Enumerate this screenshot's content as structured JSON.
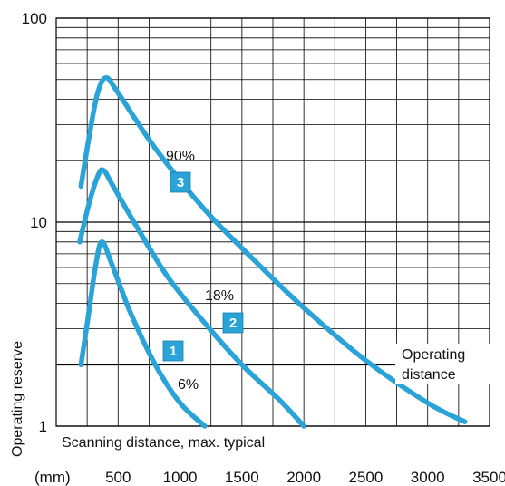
{
  "chart_data": {
    "type": "line",
    "x_unit_label": "(mm)",
    "x_ticks": [
      500,
      1000,
      1500,
      2000,
      2500,
      3000,
      3500
    ],
    "xlim": [
      0,
      3500
    ],
    "y_scale": "log",
    "y_ticks": [
      1,
      10,
      100
    ],
    "ylim": [
      1,
      100
    ],
    "ylabel": "Operating reserve",
    "xlabel": "Scanning distance, max. typical",
    "grid": true,
    "line_color": "#2aa3d8",
    "annotations": {
      "operating_distance": "Operating distance",
      "operating_distance_line1": "Operating",
      "operating_distance_line2": "distance",
      "operating_distance_y": 2
    },
    "series": [
      {
        "name": "6%",
        "badge": "1",
        "x": [
          200,
          260,
          320,
          370,
          450,
          600,
          800,
          1000,
          1200
        ],
        "y": [
          2.0,
          3.5,
          6.2,
          8.0,
          6.2,
          3.6,
          2.0,
          1.3,
          1.0
        ]
      },
      {
        "name": "18%",
        "badge": "2",
        "x": [
          190,
          260,
          330,
          380,
          460,
          650,
          900,
          1200,
          1500,
          1800,
          2000
        ],
        "y": [
          8.0,
          12.0,
          16.5,
          18.0,
          15.0,
          9.5,
          5.4,
          3.2,
          2.0,
          1.35,
          1.0
        ]
      },
      {
        "name": "90%",
        "badge": "3",
        "x": [
          200,
          260,
          330,
          400,
          500,
          800,
          1200,
          1600,
          2000,
          2500,
          3000,
          3300
        ],
        "y": [
          15.0,
          25.0,
          42.0,
          51.0,
          43.0,
          23.0,
          11.5,
          6.5,
          3.8,
          2.1,
          1.3,
          1.05
        ]
      }
    ]
  }
}
